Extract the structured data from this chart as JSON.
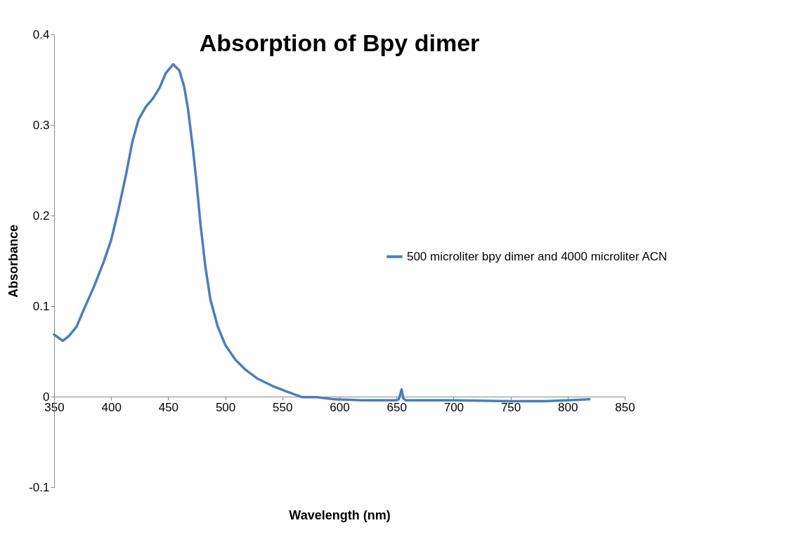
{
  "chart_data": {
    "type": "line",
    "title": "Absorption of Bpy dimer",
    "xlabel": "Wavelength (nm)",
    "ylabel": "Absorbance",
    "xlim": [
      350,
      850
    ],
    "xticks": [
      350,
      400,
      450,
      500,
      550,
      600,
      650,
      700,
      750,
      800,
      850
    ],
    "ylim": [
      -0.1,
      0.4
    ],
    "yticks": [
      -0.1,
      0,
      0.1,
      0.2,
      0.3,
      0.4
    ],
    "grid": false,
    "legend": "right",
    "marker": "none",
    "line_style": "solid",
    "series": [
      {
        "name": "500 microliter bpy dimer and 4000 microliter ACN",
        "color": "#4a7ebb",
        "x": [
          350,
          357.6,
          363,
          369.6,
          376,
          384.8,
          393.5,
          400,
          406.5,
          413,
          418.5,
          424,
          430.4,
          437,
          442.4,
          447.8,
          454.3,
          459.8,
          464,
          467.4,
          471.7,
          475,
          478.3,
          482.6,
          487,
          493.5,
          500,
          508.7,
          517.4,
          528,
          541,
          554,
          567,
          580,
          595.6,
          620,
          650,
          652,
          654.5,
          656,
          658,
          700,
          750,
          780,
          800,
          819
        ],
        "values": [
          0.0685,
          0.0616,
          0.067,
          0.077,
          0.096,
          0.121,
          0.149,
          0.173,
          0.207,
          0.245,
          0.281,
          0.306,
          0.32,
          0.33,
          0.341,
          0.357,
          0.367,
          0.36,
          0.342,
          0.317,
          0.273,
          0.234,
          0.19,
          0.143,
          0.107,
          0.077,
          0.057,
          0.041,
          0.03,
          0.02,
          0.012,
          0.0055,
          -0.0005,
          -0.0005,
          -0.003,
          -0.004,
          -0.004,
          -0.003,
          0.008,
          -0.002,
          -0.004,
          -0.004,
          -0.005,
          -0.005,
          -0.004,
          -0.003
        ]
      }
    ]
  }
}
